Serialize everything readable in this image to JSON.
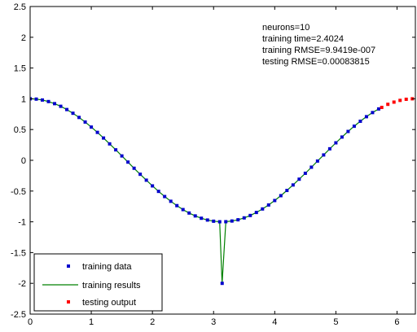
{
  "chart_data": {
    "type": "line",
    "xlim": [
      0,
      6.3
    ],
    "ylim": [
      -2.5,
      2.5
    ],
    "grid": false,
    "legend_placement": "bottom-left",
    "x_ticks": [
      "0",
      "1",
      "2",
      "3",
      "4",
      "5",
      "6"
    ],
    "y_ticks": [
      "2.5",
      "2",
      "1.5",
      "1",
      "0.5",
      "0",
      "-0.5",
      "-1",
      "-1.5",
      "-2",
      "-2.5"
    ],
    "annotations": [
      "neurons=10",
      "training time=2.4024",
      "training RMSE=9.9419e-007",
      "testing RMSE=0.00083815"
    ],
    "series": [
      {
        "name": "training data",
        "style": "points",
        "color": "#0000cc",
        "x": [
          0.0,
          0.1,
          0.2,
          0.3,
          0.4,
          0.5,
          0.6,
          0.7,
          0.8,
          0.9,
          1.0,
          1.1,
          1.2,
          1.3,
          1.4,
          1.5,
          1.6,
          1.7,
          1.8,
          1.9,
          2.0,
          2.1,
          2.2,
          2.3,
          2.4,
          2.5,
          2.6,
          2.7,
          2.8,
          2.9,
          3.0,
          3.1,
          3.14,
          3.2,
          3.3,
          3.4,
          3.5,
          3.6,
          3.7,
          3.8,
          3.9,
          4.0,
          4.1,
          4.2,
          4.3,
          4.4,
          4.5,
          4.6,
          4.7,
          4.8,
          4.9,
          5.0,
          5.1,
          5.2,
          5.3,
          5.4,
          5.5,
          5.6,
          5.7
        ],
        "y": [
          1.0,
          0.995,
          0.98,
          0.955,
          0.921,
          0.878,
          0.825,
          0.765,
          0.697,
          0.622,
          0.54,
          0.454,
          0.362,
          0.267,
          0.17,
          0.071,
          -0.029,
          -0.129,
          -0.227,
          -0.323,
          -0.416,
          -0.505,
          -0.589,
          -0.666,
          -0.737,
          -0.801,
          -0.857,
          -0.904,
          -0.942,
          -0.971,
          -0.99,
          -0.999,
          -2.0,
          -0.998,
          -0.987,
          -0.967,
          -0.936,
          -0.897,
          -0.848,
          -0.791,
          -0.726,
          -0.654,
          -0.575,
          -0.49,
          -0.401,
          -0.307,
          -0.211,
          -0.112,
          -0.012,
          0.087,
          0.187,
          0.284,
          0.378,
          0.469,
          0.554,
          0.635,
          0.709,
          0.776,
          0.835
        ]
      },
      {
        "name": "training results",
        "style": "line",
        "color": "#008000",
        "x": [
          0.0,
          0.1,
          0.2,
          0.3,
          0.4,
          0.5,
          0.6,
          0.7,
          0.8,
          0.9,
          1.0,
          1.1,
          1.2,
          1.3,
          1.4,
          1.5,
          1.6,
          1.7,
          1.8,
          1.9,
          2.0,
          2.1,
          2.2,
          2.3,
          2.4,
          2.5,
          2.6,
          2.7,
          2.8,
          2.9,
          3.0,
          3.1,
          3.14,
          3.2,
          3.3,
          3.4,
          3.5,
          3.6,
          3.7,
          3.8,
          3.9,
          4.0,
          4.1,
          4.2,
          4.3,
          4.4,
          4.5,
          4.6,
          4.7,
          4.8,
          4.9,
          5.0,
          5.1,
          5.2,
          5.3,
          5.4,
          5.5,
          5.6,
          5.7
        ],
        "y": [
          1.0,
          0.995,
          0.98,
          0.955,
          0.921,
          0.878,
          0.825,
          0.765,
          0.697,
          0.622,
          0.54,
          0.454,
          0.362,
          0.267,
          0.17,
          0.071,
          -0.029,
          -0.129,
          -0.227,
          -0.323,
          -0.416,
          -0.505,
          -0.589,
          -0.666,
          -0.737,
          -0.801,
          -0.857,
          -0.904,
          -0.942,
          -0.971,
          -0.99,
          -0.999,
          -2.0,
          -0.998,
          -0.987,
          -0.967,
          -0.936,
          -0.897,
          -0.848,
          -0.791,
          -0.726,
          -0.654,
          -0.575,
          -0.49,
          -0.401,
          -0.307,
          -0.211,
          -0.112,
          -0.012,
          0.087,
          0.187,
          0.284,
          0.378,
          0.469,
          0.554,
          0.635,
          0.709,
          0.776,
          0.835
        ]
      },
      {
        "name": "testing output",
        "style": "points",
        "color": "#ff0000",
        "x": [
          5.75,
          5.85,
          5.95,
          6.05,
          6.15,
          6.25
        ],
        "y": [
          0.86,
          0.91,
          0.946,
          0.974,
          0.992,
          1.0
        ]
      }
    ]
  }
}
